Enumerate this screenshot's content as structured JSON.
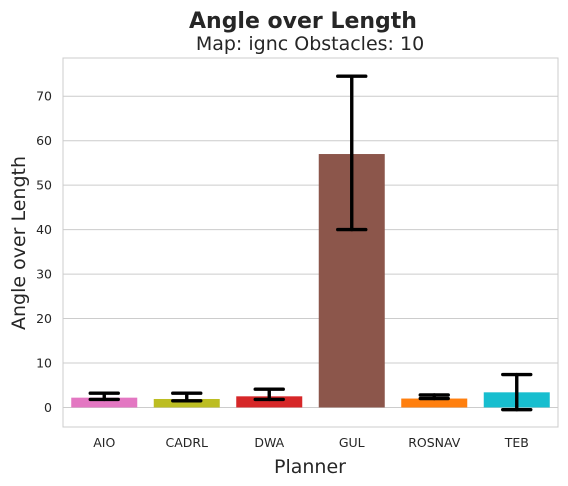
{
  "chart_data": {
    "type": "bar",
    "suptitle": "Angle over Length",
    "title": "Map: ignc Obstacles: 10",
    "xlabel": "Planner",
    "ylabel": "Angle over Length",
    "categories": [
      "AIO",
      "CADRL",
      "DWA",
      "GUL",
      "ROSNAV",
      "TEB"
    ],
    "values": [
      2.2,
      1.9,
      2.5,
      57.0,
      2.0,
      3.4
    ],
    "error_low": [
      1.8,
      1.5,
      1.8,
      40.0,
      2.0,
      -0.5
    ],
    "error_high": [
      3.2,
      3.2,
      4.1,
      74.5,
      2.8,
      7.4
    ],
    "colors": [
      "#e377c2",
      "#bcbd22",
      "#d62728",
      "#8c564b",
      "#ff7f0e",
      "#17becf"
    ],
    "yticks": [
      0,
      10,
      20,
      30,
      40,
      50,
      60,
      70
    ],
    "ylim": [
      -4.4,
      78.6
    ],
    "grid": true,
    "legend": "none"
  }
}
